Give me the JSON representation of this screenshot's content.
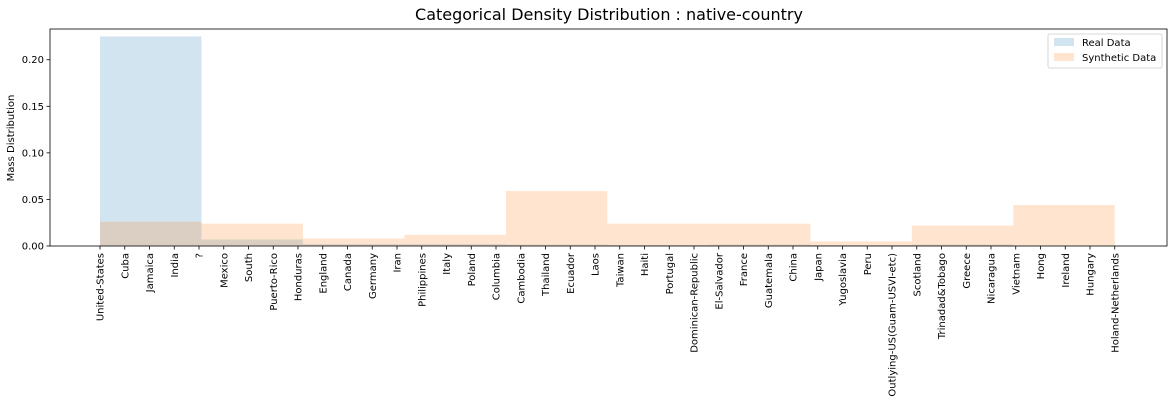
{
  "chart_data": {
    "type": "histogram",
    "title": "Categorical Density Distribution : native-country",
    "xlabel": "",
    "ylabel": "Mass Distribution",
    "ylim": [
      0,
      0.233
    ],
    "yticks": [
      0.0,
      0.05,
      0.1,
      0.15,
      0.2
    ],
    "ytick_labels": [
      "0.00",
      "0.05",
      "0.10",
      "0.15",
      "0.20"
    ],
    "grid": false,
    "legend_position": "top-right",
    "categories": [
      "United-States",
      "Cuba",
      "Jamaica",
      "India",
      "?",
      "Mexico",
      "South",
      "Puerto-Rico",
      "Honduras",
      "England",
      "Canada",
      "Germany",
      "Iran",
      "Philippines",
      "Italy",
      "Poland",
      "Columbia",
      "Cambodia",
      "Thailand",
      "Ecuador",
      "Laos",
      "Taiwan",
      "Haiti",
      "Portugal",
      "Dominican-Republic",
      "El-Salvador",
      "France",
      "Guatemala",
      "China",
      "Japan",
      "Yugoslavia",
      "Peru",
      "Outlying-US(Guam-USVI-etc)",
      "Scotland",
      "Trinadad&Tobago",
      "Greece",
      "Nicaragua",
      "Vietnam",
      "Hong",
      "Ireland",
      "Hungary",
      "Holand-Netherlands"
    ],
    "bins": [
      0,
      4.1,
      8.2,
      12.3,
      16.4,
      20.5,
      24.6,
      28.7,
      32.8,
      36.9,
      41
    ],
    "series": [
      {
        "name": "Real Data",
        "color": "#1f77b4",
        "opacity": 0.2,
        "values": [
          0.225,
          0.007,
          0.002,
          0.002,
          0.0015,
          0.001,
          0.0015,
          0.001,
          0.0015,
          0.0005
        ]
      },
      {
        "name": "Synthetic Data",
        "color": "#ff7f0e",
        "opacity": 0.2,
        "values": [
          0.026,
          0.024,
          0.008,
          0.012,
          0.059,
          0.024,
          0.024,
          0.005,
          0.022,
          0.044
        ]
      }
    ]
  }
}
